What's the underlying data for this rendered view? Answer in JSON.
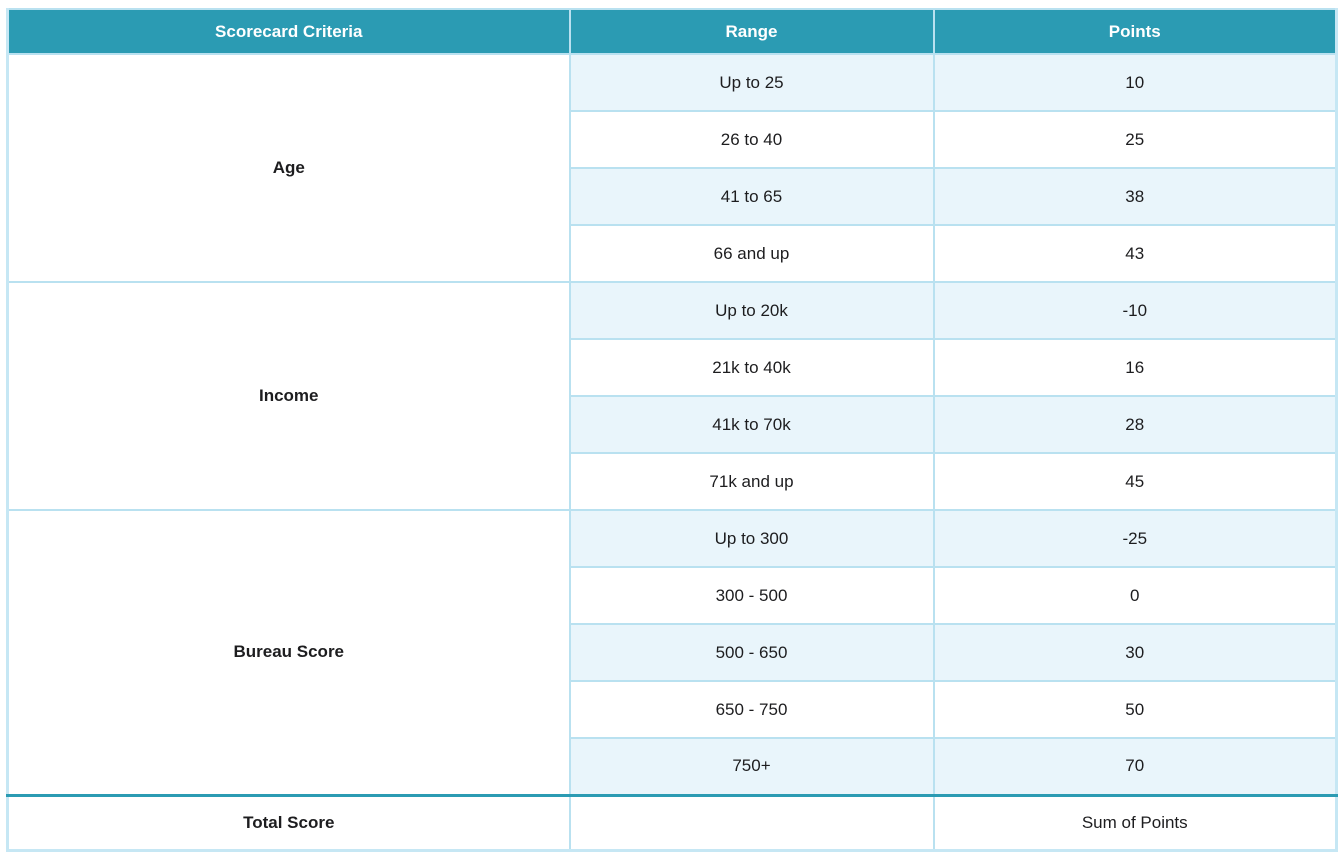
{
  "table": {
    "headers": [
      "Scorecard Criteria",
      "Range",
      "Points"
    ],
    "groups": [
      {
        "criteria": "Age",
        "rows": [
          {
            "range": "Up to 25",
            "points": "10"
          },
          {
            "range": "26 to 40",
            "points": "25"
          },
          {
            "range": "41 to 65",
            "points": "38"
          },
          {
            "range": "66 and up",
            "points": "43"
          }
        ]
      },
      {
        "criteria": "Income",
        "rows": [
          {
            "range": "Up to 20k",
            "points": "-10"
          },
          {
            "range": "21k to 40k",
            "points": "16"
          },
          {
            "range": "41k to 70k",
            "points": "28"
          },
          {
            "range": "71k and up",
            "points": "45"
          }
        ]
      },
      {
        "criteria": "Bureau Score",
        "rows": [
          {
            "range": "Up to 300",
            "points": "-25"
          },
          {
            "range": "300 - 500",
            "points": "0"
          },
          {
            "range": "500 - 650",
            "points": "30"
          },
          {
            "range": "650 - 750",
            "points": "50"
          },
          {
            "range": "750+",
            "points": "70"
          }
        ]
      }
    ],
    "total": {
      "label": "Total Score",
      "points": "Sum of Points"
    }
  },
  "colors": {
    "header_bg": "#2b9bb3",
    "header_text": "#ffffff",
    "row_alt_bg": "#e9f5fb",
    "grid_border": "#b9e1f0",
    "total_divider": "#2b9bb3",
    "body_text": "#1d1d1f"
  }
}
